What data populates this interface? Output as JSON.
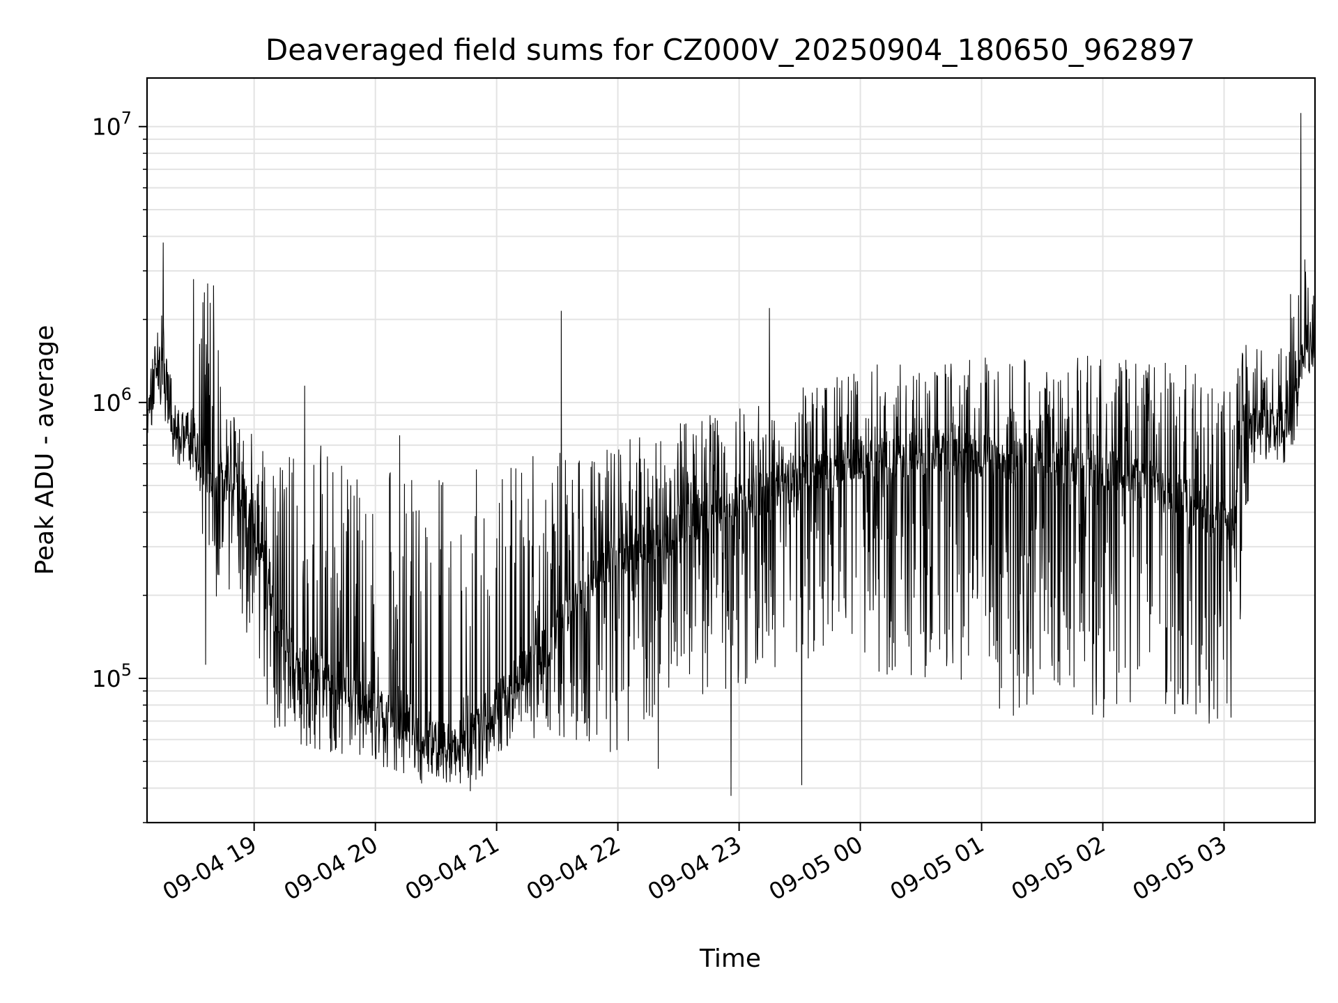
{
  "chart_data": {
    "type": "line",
    "title": "Deaveraged field sums for CZ000V_20250904_180650_962897",
    "xlabel": "Time",
    "ylabel": "Peak ADU - average",
    "yscale": "log",
    "ylim": [
      30000,
      15000000
    ],
    "xlim": [
      "2025-09-04 18:07",
      "2025-09-05 03:45"
    ],
    "grid": true,
    "line_color": "#000000",
    "x_ticks": [
      {
        "value": "2025-09-04 19:00",
        "label": "09-04 19"
      },
      {
        "value": "2025-09-04 20:00",
        "label": "09-04 20"
      },
      {
        "value": "2025-09-04 21:00",
        "label": "09-04 21"
      },
      {
        "value": "2025-09-04 22:00",
        "label": "09-04 22"
      },
      {
        "value": "2025-09-04 23:00",
        "label": "09-04 23"
      },
      {
        "value": "2025-09-05 00:00",
        "label": "09-05 00"
      },
      {
        "value": "2025-09-05 01:00",
        "label": "09-05 01"
      },
      {
        "value": "2025-09-05 02:00",
        "label": "09-05 02"
      },
      {
        "value": "2025-09-05 03:00",
        "label": "09-05 03"
      }
    ],
    "y_ticks": [
      {
        "value": 100000,
        "base": "10",
        "exp": "5"
      },
      {
        "value": 1000000,
        "base": "10",
        "exp": "6"
      },
      {
        "value": 10000000,
        "base": "10",
        "exp": "7"
      }
    ],
    "series": [
      {
        "x": [
          "2025-09-04 18:07",
          "2025-09-04 18:10",
          "2025-09-04 18:13",
          "2025-09-04 18:16",
          "2025-09-04 18:20",
          "2025-09-04 18:23",
          "2025-09-04 18:25",
          "2025-09-04 18:30",
          "2025-09-04 18:35",
          "2025-09-04 18:40",
          "2025-09-04 18:45",
          "2025-09-04 18:50",
          "2025-09-04 18:55",
          "2025-09-04 19:05",
          "2025-09-04 19:15",
          "2025-09-04 19:25",
          "2025-09-04 19:35",
          "2025-09-04 19:45",
          "2025-09-04 19:55",
          "2025-09-04 20:05",
          "2025-09-04 20:15",
          "2025-09-04 20:25",
          "2025-09-04 20:35",
          "2025-09-04 20:45",
          "2025-09-04 20:55",
          "2025-09-04 21:05",
          "2025-09-04 21:15",
          "2025-09-04 21:25",
          "2025-09-04 21:35",
          "2025-09-04 21:45",
          "2025-09-04 21:55",
          "2025-09-04 22:10",
          "2025-09-04 22:25",
          "2025-09-04 22:40",
          "2025-09-04 22:55",
          "2025-09-04 23:10",
          "2025-09-04 23:25",
          "2025-09-04 23:40",
          "2025-09-04 23:55",
          "2025-09-05 00:10",
          "2025-09-05 00:25",
          "2025-09-05 00:40",
          "2025-09-05 00:55",
          "2025-09-05 01:10",
          "2025-09-05 01:25",
          "2025-09-05 01:40",
          "2025-09-05 01:55",
          "2025-09-05 02:10",
          "2025-09-05 02:25",
          "2025-09-05 02:40",
          "2025-09-05 02:55",
          "2025-09-05 03:05",
          "2025-09-05 03:10",
          "2025-09-05 03:15",
          "2025-09-05 03:20",
          "2025-09-05 03:25",
          "2025-09-05 03:30",
          "2025-09-05 03:35",
          "2025-09-05 03:40",
          "2025-09-05 03:45"
        ],
        "median": [
          900000,
          1100000,
          1500000,
          1300000,
          800000,
          780000,
          800000,
          760000,
          600000,
          500000,
          520000,
          500000,
          450000,
          250000,
          140000,
          110000,
          100000,
          95000,
          85000,
          75000,
          70000,
          60000,
          58000,
          60000,
          75000,
          90000,
          110000,
          130000,
          170000,
          220000,
          260000,
          300000,
          340000,
          380000,
          420000,
          460000,
          520000,
          560000,
          620000,
          620000,
          650000,
          660000,
          640000,
          630000,
          620000,
          600000,
          580000,
          560000,
          520000,
          460000,
          380000,
          330000,
          900000,
          850000,
          850000,
          800000,
          850000,
          1100000,
          1500000,
          1500000
        ],
        "low": [
          700000,
          800000,
          1000000,
          800000,
          600000,
          580000,
          600000,
          560000,
          230000,
          200000,
          180000,
          150000,
          130000,
          70000,
          60000,
          55000,
          55000,
          50000,
          50000,
          45000,
          45000,
          40000,
          40000,
          40000,
          45000,
          50000,
          55000,
          60000,
          60000,
          55000,
          50000,
          60000,
          70000,
          80000,
          90000,
          100000,
          110000,
          120000,
          140000,
          100000,
          100000,
          90000,
          80000,
          75000,
          70000,
          70000,
          70000,
          70000,
          70000,
          65000,
          60000,
          60000,
          200000,
          600000,
          600000,
          550000,
          600000,
          700000,
          1200000,
          1200000
        ],
        "high": [
          1200000,
          1500000,
          2200000,
          2300000,
          1000000,
          1000000,
          1000000,
          950000,
          2800000,
          2700000,
          950000,
          900000,
          800000,
          800000,
          750000,
          700000,
          720000,
          700000,
          600000,
          580000,
          600000,
          600000,
          600000,
          620000,
          620000,
          640000,
          660000,
          680000,
          700000,
          700000,
          710000,
          750000,
          850000,
          900000,
          950000,
          1000000,
          1100000,
          1200000,
          1300000,
          1400000,
          1450000,
          1450000,
          1450000,
          1500000,
          1500000,
          1500000,
          1500000,
          1500000,
          1450000,
          1400000,
          1300000,
          1200000,
          2000000,
          1800000,
          1500000,
          1300000,
          2000000,
          3000000,
          3300000,
          2400000
        ],
        "spikes": [
          {
            "x": "2025-09-04 18:15",
            "y": 3800000
          },
          {
            "x": "2025-09-04 18:30",
            "y": 2800000
          },
          {
            "x": "2025-09-04 18:37",
            "y": 2700000
          },
          {
            "x": "2025-09-04 18:36",
            "y": 112000
          },
          {
            "x": "2025-09-04 19:25",
            "y": 1150000
          },
          {
            "x": "2025-09-04 20:12",
            "y": 760000
          },
          {
            "x": "2025-09-04 20:47",
            "y": 39000
          },
          {
            "x": "2025-09-04 21:32",
            "y": 2150000
          },
          {
            "x": "2025-09-04 22:20",
            "y": 47000
          },
          {
            "x": "2025-09-04 22:56",
            "y": 37500
          },
          {
            "x": "2025-09-04 23:15",
            "y": 2200000
          },
          {
            "x": "2025-09-04 23:31",
            "y": 41000
          },
          {
            "x": "2025-09-05 03:38",
            "y": 11200000
          },
          {
            "x": "2025-09-05 03:40",
            "y": 3300000
          }
        ]
      }
    ]
  }
}
